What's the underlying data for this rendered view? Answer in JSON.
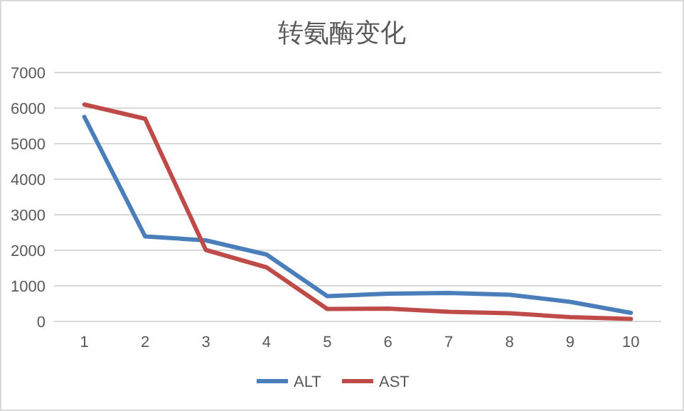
{
  "chart_data": {
    "type": "line",
    "title": "转氨酶变化",
    "categories": [
      "1",
      "2",
      "3",
      "4",
      "5",
      "6",
      "7",
      "8",
      "9",
      "10"
    ],
    "series": [
      {
        "name": "ALT",
        "color": "#4a7ebb",
        "values": [
          5750,
          2390,
          2280,
          1880,
          710,
          780,
          800,
          750,
          550,
          240
        ]
      },
      {
        "name": "AST",
        "color": "#be4b48",
        "values": [
          6100,
          5700,
          2010,
          1520,
          350,
          360,
          270,
          230,
          120,
          70
        ]
      }
    ],
    "ylim": [
      0,
      7000
    ],
    "yticks": [
      0,
      1000,
      2000,
      3000,
      4000,
      5000,
      6000,
      7000
    ],
    "grid": "y",
    "legend": "bottom",
    "marker": "none",
    "line_style": "solid"
  }
}
